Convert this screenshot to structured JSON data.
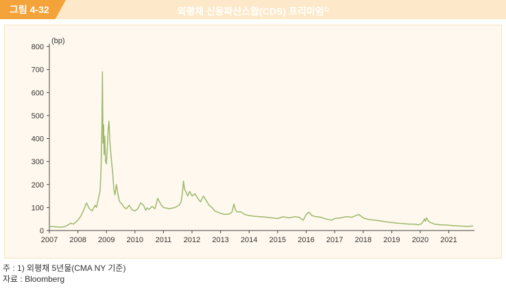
{
  "header": {
    "figure_label": "그림 4-32",
    "title": "외평채 신용파산스왑(CDS) 프리미엄",
    "title_footnote": "1)"
  },
  "notes": {
    "note": "주 : 1) 외평채 5년물(CMA NY 기준)",
    "source": "자료 : Bloomberg"
  },
  "colors": {
    "accent": "#f3a33a",
    "title_band": "#fde9c9",
    "panel": "#fef8ee",
    "line": "#9db86b"
  },
  "chart_data": {
    "type": "line",
    "title": "외평채 신용파산스왑(CDS) 프리미엄",
    "ylabel": "(bp)",
    "xlabel": "",
    "xlim": [
      2007.0,
      2021.9
    ],
    "ylim": [
      0,
      800
    ],
    "yticks": [
      0,
      100,
      200,
      300,
      400,
      500,
      600,
      700,
      800
    ],
    "xticks": [
      2007,
      2008,
      2009,
      2010,
      2011,
      2012,
      2013,
      2014,
      2015,
      2016,
      2017,
      2018,
      2019,
      2020,
      2021
    ],
    "xtick_labels": [
      "2007",
      "2008",
      "2009",
      "2010",
      "2011",
      "2012",
      "2013",
      "2014",
      "2015",
      "2016",
      "2017",
      "2018",
      "2019",
      "2020",
      "2021"
    ],
    "grid": false,
    "legend": "none",
    "series": [
      {
        "color": "#9db86b",
        "x": [
          2007.0,
          2007.25,
          2007.45,
          2007.6,
          2007.75,
          2007.85,
          2008.0,
          2008.1,
          2008.2,
          2008.3,
          2008.4,
          2008.5,
          2008.6,
          2008.65,
          2008.72,
          2008.78,
          2008.81,
          2008.84,
          2008.86,
          2008.88,
          2008.9,
          2008.92,
          2008.94,
          2008.97,
          2009.0,
          2009.03,
          2009.06,
          2009.09,
          2009.12,
          2009.15,
          2009.18,
          2009.22,
          2009.26,
          2009.3,
          2009.35,
          2009.4,
          2009.45,
          2009.5,
          2009.55,
          2009.62,
          2009.7,
          2009.8,
          2009.9,
          2010.0,
          2010.1,
          2010.2,
          2010.3,
          2010.38,
          2010.42,
          2010.5,
          2010.6,
          2010.7,
          2010.8,
          2010.9,
          2011.0,
          2011.2,
          2011.4,
          2011.55,
          2011.62,
          2011.66,
          2011.7,
          2011.74,
          2011.78,
          2011.85,
          2011.92,
          2012.0,
          2012.1,
          2012.2,
          2012.3,
          2012.4,
          2012.5,
          2012.6,
          2012.7,
          2012.8,
          2012.9,
          2013.0,
          2013.15,
          2013.3,
          2013.4,
          2013.47,
          2013.52,
          2013.6,
          2013.7,
          2013.85,
          2014.0,
          2014.2,
          2014.4,
          2014.6,
          2014.8,
          2015.0,
          2015.2,
          2015.4,
          2015.6,
          2015.75,
          2015.9,
          2016.0,
          2016.1,
          2016.2,
          2016.35,
          2016.5,
          2016.7,
          2016.9,
          2017.0,
          2017.2,
          2017.4,
          2017.6,
          2017.75,
          2017.85,
          2018.0,
          2018.2,
          2018.4,
          2018.6,
          2018.8,
          2019.0,
          2019.2,
          2019.4,
          2019.6,
          2019.8,
          2019.95,
          2020.05,
          2020.15,
          2020.18,
          2020.22,
          2020.28,
          2020.35,
          2020.5,
          2020.7,
          2020.9,
          2021.1,
          2021.3,
          2021.5,
          2021.7,
          2021.85
        ],
        "values": [
          18,
          16,
          15,
          20,
          32,
          28,
          45,
          62,
          88,
          120,
          95,
          85,
          110,
          100,
          140,
          175,
          260,
          450,
          690,
          380,
          460,
          330,
          410,
          300,
          290,
          360,
          440,
          475,
          390,
          340,
          300,
          250,
          180,
          155,
          200,
          160,
          130,
          120,
          115,
          100,
          95,
          110,
          90,
          85,
          95,
          120,
          110,
          88,
          98,
          92,
          105,
          95,
          140,
          115,
          100,
          95,
          100,
          110,
          125,
          160,
          215,
          180,
          170,
          150,
          170,
          150,
          160,
          140,
          125,
          150,
          130,
          110,
          100,
          85,
          80,
          75,
          70,
          72,
          80,
          115,
          90,
          80,
          82,
          70,
          65,
          62,
          60,
          58,
          55,
          52,
          60,
          55,
          60,
          58,
          45,
          70,
          80,
          65,
          60,
          58,
          50,
          45,
          52,
          55,
          60,
          58,
          65,
          70,
          55,
          48,
          45,
          42,
          38,
          35,
          32,
          30,
          28,
          28,
          25,
          30,
          50,
          40,
          55,
          42,
          35,
          28,
          25,
          24,
          22,
          20,
          19,
          18,
          20
        ]
      }
    ]
  }
}
